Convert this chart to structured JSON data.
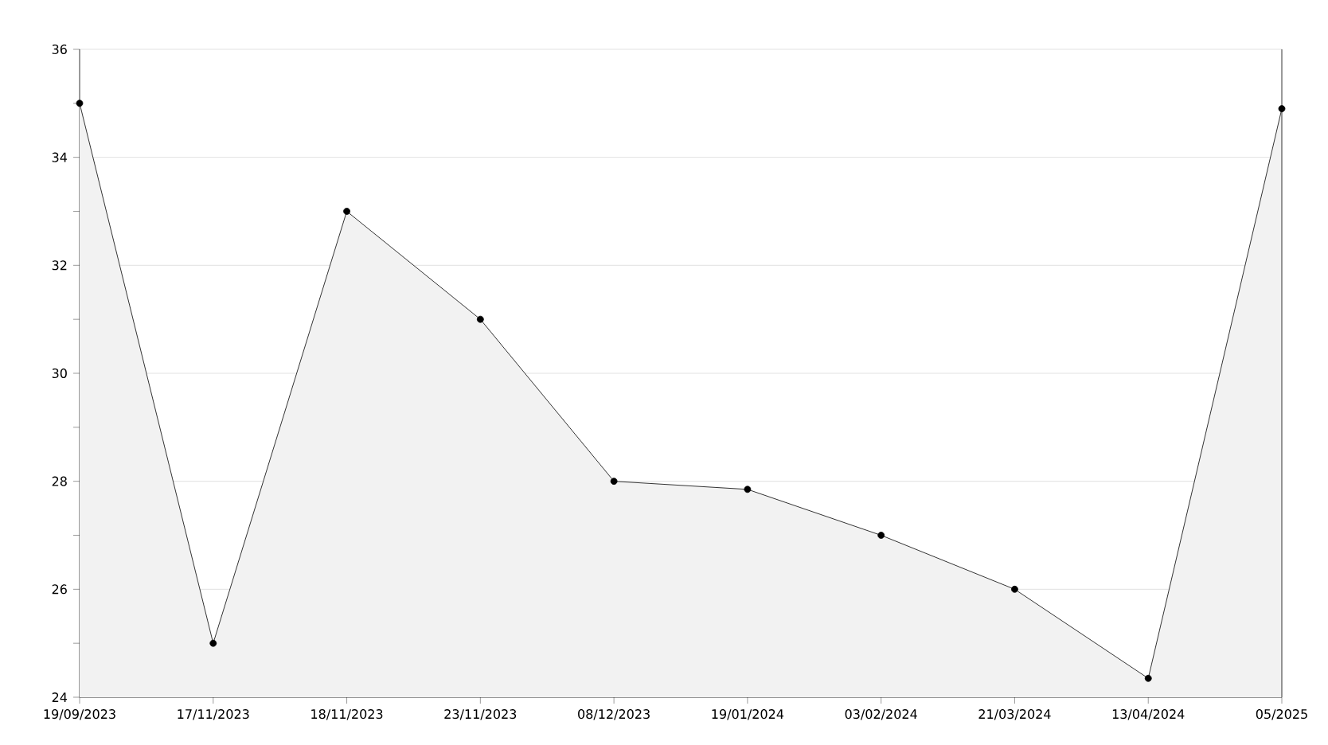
{
  "chart_data": {
    "type": "area",
    "categories": [
      "19/09/2023",
      "17/11/2023",
      "18/11/2023",
      "23/11/2023",
      "08/12/2023",
      "19/01/2024",
      "03/02/2024",
      "21/03/2024",
      "13/04/2024",
      "05/2025"
    ],
    "values": [
      35,
      25,
      33,
      31,
      28,
      27.85,
      27,
      26,
      24.35,
      34.9
    ],
    "color": "#000000",
    "ylim": [
      24,
      36
    ],
    "yticks": [
      24,
      {
        "value": 25,
        "label": null
      },
      26,
      {
        "value": 27,
        "label": null
      },
      28,
      {
        "value": 29,
        "label": null
      },
      30,
      {
        "value": 31,
        "label": null
      },
      32,
      {
        "value": 33,
        "label": null
      },
      34,
      {
        "value": 35,
        "label": null
      },
      36
    ],
    "grid": "y",
    "marker": "circle",
    "line_style": "solid"
  }
}
